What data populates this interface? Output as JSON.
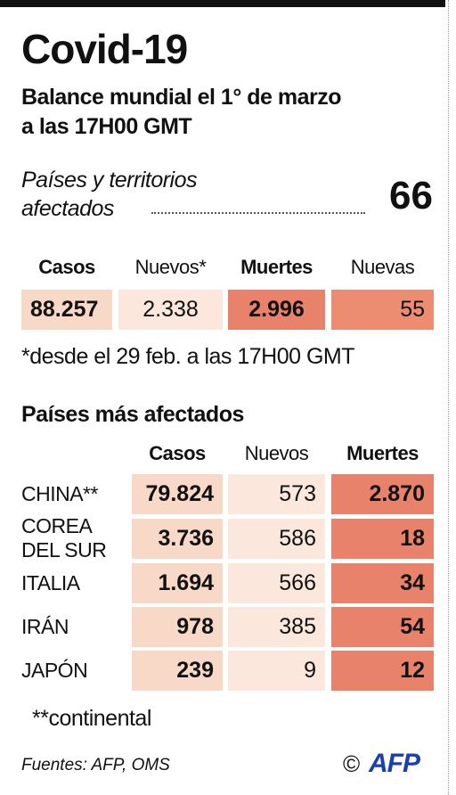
{
  "header": {
    "title": "Covid-19",
    "subtitle_lines": [
      "Balance mundial el 1° de marzo",
      "a las 17H00 GMT"
    ]
  },
  "countries_affected": {
    "label_lines": [
      "Países y territorios",
      "afectados"
    ],
    "value": "66"
  },
  "summary": {
    "columns": [
      "Casos",
      "Nuevos*",
      "Muertes",
      "Nuevas"
    ],
    "values": [
      "88.257",
      "2.338",
      "2.996",
      "55"
    ],
    "note": "*desde el 29 feb. a las 17H00 GMT"
  },
  "table": {
    "title": "Países más afectados",
    "columns": [
      "Casos",
      "Nuevos",
      "Muertes"
    ],
    "rows": [
      {
        "country": [
          "CHINA**"
        ],
        "values": [
          "79.824",
          "573",
          "2.870"
        ]
      },
      {
        "country": [
          "COREA",
          "DEL SUR"
        ],
        "values": [
          "3.736",
          "586",
          "18"
        ]
      },
      {
        "country": [
          "ITALIA"
        ],
        "values": [
          "1.694",
          "566",
          "34"
        ]
      },
      {
        "country": [
          "IRÁN"
        ],
        "values": [
          "978",
          "385",
          "54"
        ]
      },
      {
        "country": [
          "JAPÓN"
        ],
        "values": [
          "239",
          "9",
          "12"
        ]
      }
    ],
    "note": "**continental"
  },
  "footer": {
    "sources": "Fuentes: AFP, OMS",
    "copyright": "©",
    "logo": "AFP"
  }
}
